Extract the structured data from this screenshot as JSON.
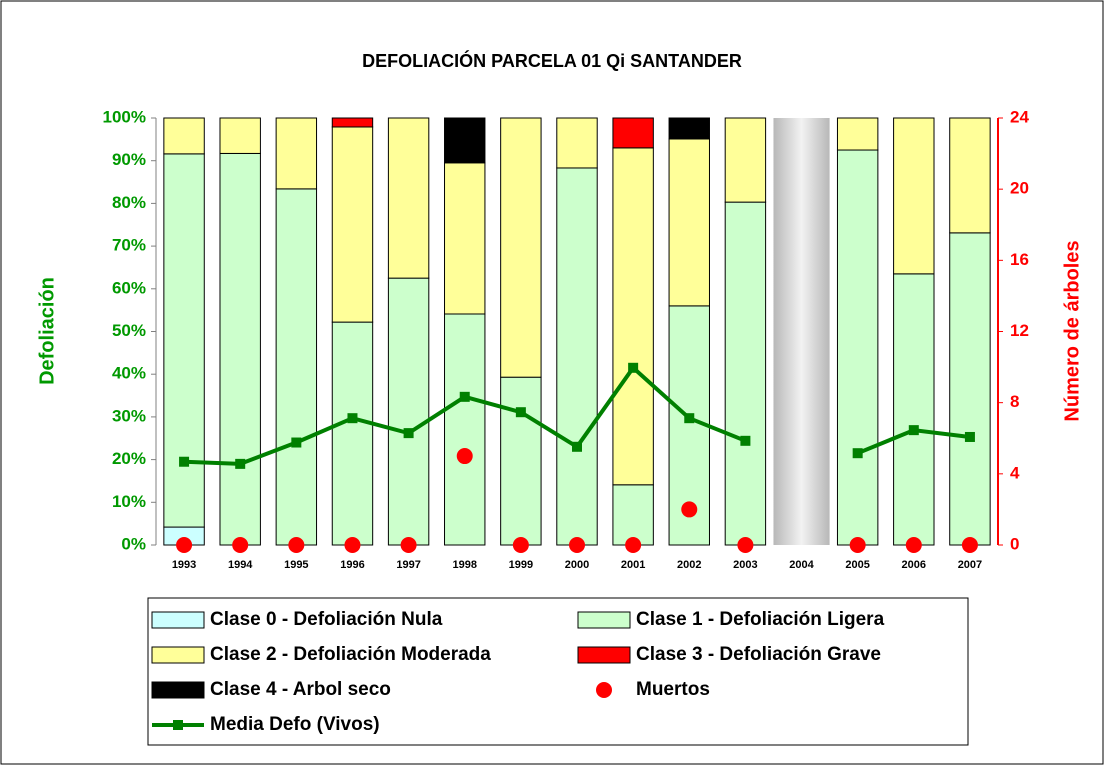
{
  "chart_data": {
    "type": "bar",
    "stacked": true,
    "title": "DEFOLIACIÓN PARCELA 01 Qi SANTANDER",
    "ylabel": "Defoliación",
    "y2label": "Número de árboles",
    "categories": [
      "1993",
      "1994",
      "1995",
      "1996",
      "1997",
      "1998",
      "1999",
      "2000",
      "2001",
      "2002",
      "2003",
      "2004",
      "2005",
      "2006",
      "2007"
    ],
    "ylim": [
      0,
      100
    ],
    "yticks": [
      {
        "value": 0,
        "label": "0%"
      },
      {
        "value": 10,
        "label": "10%"
      },
      {
        "value": 20,
        "label": "20%"
      },
      {
        "value": 30,
        "label": "30%"
      },
      {
        "value": 40,
        "label": "40%"
      },
      {
        "value": 50,
        "label": "50%"
      },
      {
        "value": 60,
        "label": "60%"
      },
      {
        "value": 70,
        "label": "70%"
      },
      {
        "value": 80,
        "label": "80%"
      },
      {
        "value": 90,
        "label": "90%"
      },
      {
        "value": 100,
        "label": "100%"
      }
    ],
    "y2lim": [
      0,
      24
    ],
    "y2ticks": [
      0,
      4,
      8,
      12,
      16,
      20,
      24
    ],
    "ycolor": "#009900",
    "y2color": "#ff0000",
    "series": [
      {
        "name": "Clase 0 - Defoliación Nula",
        "type": "bar",
        "color": "#ccffff",
        "values": [
          4.2,
          0,
          0,
          0,
          0,
          0,
          0,
          0,
          0,
          0,
          0,
          null,
          0,
          0,
          0
        ]
      },
      {
        "name": "Clase 1 - Defoliación Ligera",
        "type": "bar",
        "color": "#ccffcc",
        "values": [
          87.4,
          91.7,
          83.4,
          52.2,
          62.5,
          54.1,
          39.3,
          88.3,
          14.1,
          56.0,
          80.3,
          null,
          92.5,
          63.5,
          73.1
        ]
      },
      {
        "name": "Clase 2 - Defoliación Moderada",
        "type": "bar",
        "color": "#ffff99",
        "values": [
          8.4,
          8.3,
          16.6,
          45.7,
          37.5,
          35.4,
          60.7,
          11.7,
          78.9,
          39.1,
          19.7,
          null,
          7.5,
          36.5,
          26.9
        ]
      },
      {
        "name": "Clase 3 - Defoliación Grave",
        "type": "bar",
        "color": "#ff0000",
        "values": [
          0,
          0,
          0,
          2.1,
          0,
          0,
          0,
          0,
          7.0,
          0,
          0,
          null,
          0,
          0,
          0
        ]
      },
      {
        "name": "Clase 4 - Arbol seco",
        "type": "bar",
        "color": "#000000",
        "values": [
          0,
          0,
          0,
          0,
          0,
          10.5,
          0,
          0,
          0,
          4.9,
          0,
          null,
          0,
          0,
          0
        ]
      },
      {
        "name": "Muertos",
        "type": "scatter",
        "axis": "y2",
        "color": "#ff0000",
        "values": [
          0,
          0,
          0,
          0,
          0,
          5,
          0,
          0,
          0,
          2,
          0,
          null,
          0,
          0,
          0
        ]
      },
      {
        "name": "Media Defo (Vivos)",
        "type": "line",
        "color": "#008000",
        "values": [
          19.5,
          19.0,
          24.0,
          29.7,
          26.2,
          34.7,
          31.1,
          23.0,
          41.5,
          29.7,
          24.4,
          null,
          21.5,
          26.9,
          25.3
        ]
      }
    ]
  }
}
